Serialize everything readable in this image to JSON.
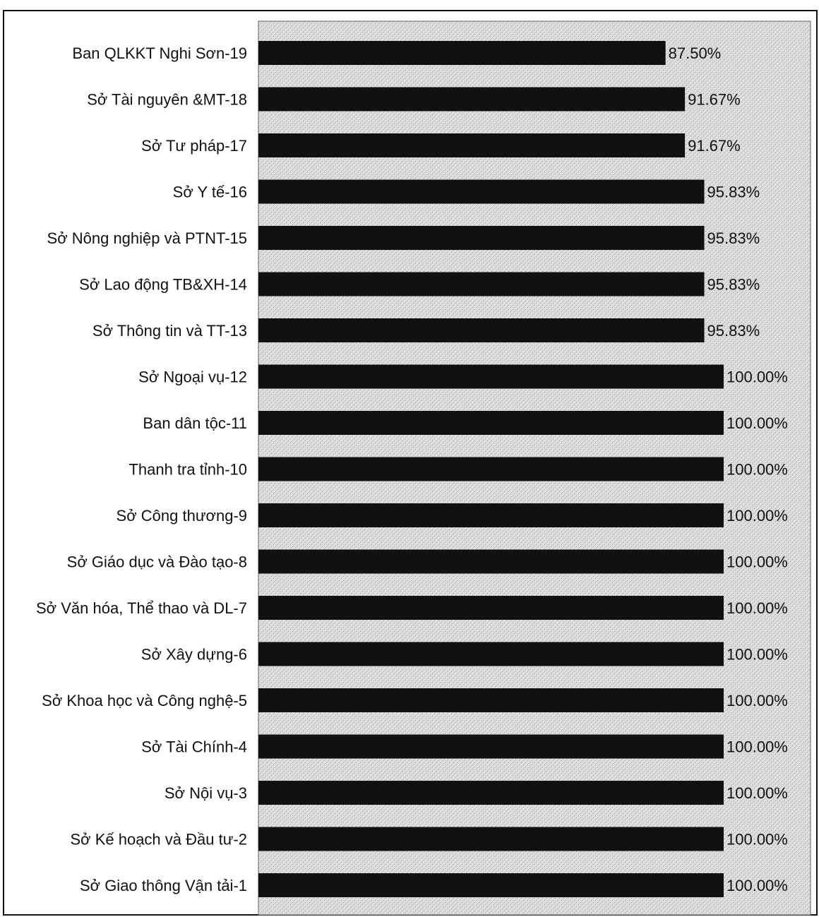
{
  "chart_data": {
    "type": "bar",
    "orientation": "horizontal",
    "categories": [
      "Ban QLKKT Nghi Sơn-19",
      "Sở Tài nguyên &MT-18",
      "Sở Tư pháp-17",
      "Sở Y tế-16",
      "Sở Nông nghiệp và PTNT-15",
      "Sở Lao động TB&XH-14",
      "Sở Thông tin và TT-13",
      "Sở Ngoại vụ-12",
      "Ban dân tộc-11",
      "Thanh tra tỉnh-10",
      "Sở Công thương-9",
      "Sở Giáo dục và Đào tạo-8",
      "Sở Văn hóa, Thể thao và DL-7",
      "Sở Xây dựng-6",
      "Sở Khoa học và Công nghệ-5",
      "Sở Tài Chính-4",
      "Sở Nội vụ-3",
      "Sở Kế hoạch và Đầu tư-2",
      "Sở Giao thông Vận tải-1"
    ],
    "values": [
      87.5,
      91.67,
      91.67,
      95.83,
      95.83,
      95.83,
      95.83,
      100,
      100,
      100,
      100,
      100,
      100,
      100,
      100,
      100,
      100,
      100,
      100
    ],
    "value_labels": [
      "87.50%",
      "91.67%",
      "91.67%",
      "95.83%",
      "95.83%",
      "95.83%",
      "95.83%",
      "100.00%",
      "100.00%",
      "100.00%",
      "100.00%",
      "100.00%",
      "100.00%",
      "100.00%",
      "100.00%",
      "100.00%",
      "100.00%",
      "100.00%",
      "100.00%"
    ],
    "xlim": [
      0,
      100
    ],
    "title": "",
    "xlabel": "",
    "ylabel": "",
    "grid": false,
    "legend": "none",
    "colors": {
      "bar": "#111111",
      "plot_background": "#d9d9d9",
      "frame": "#111111"
    }
  }
}
